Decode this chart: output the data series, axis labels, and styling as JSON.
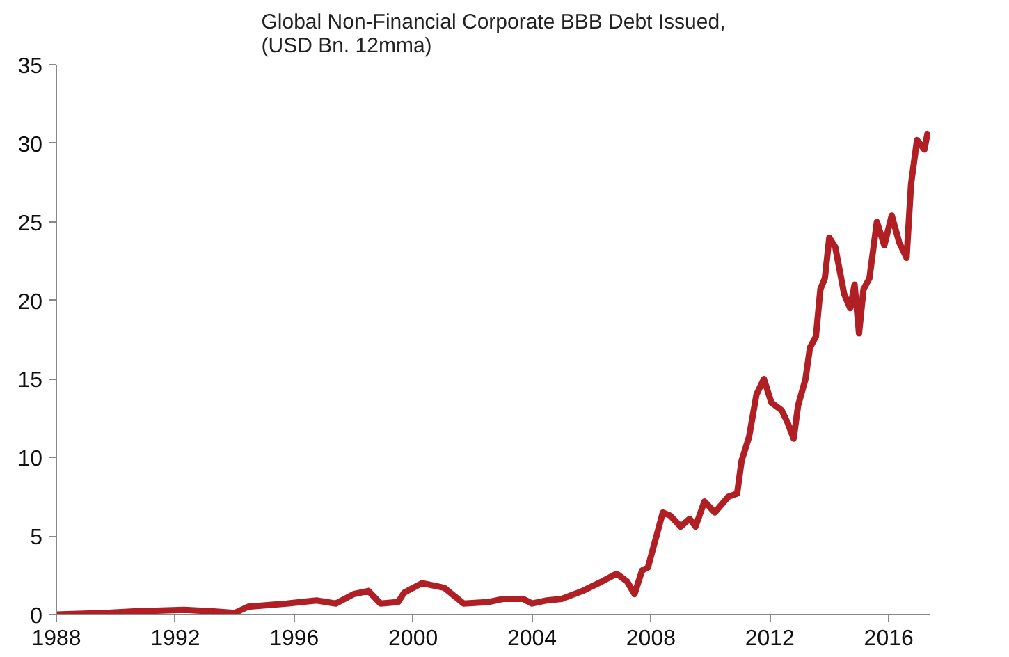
{
  "chart_data": {
    "type": "line",
    "title": "Global Non-Financial Corporate BBB Debt Issued,\n(USD Bn. 12mma)",
    "x": [
      1988.0,
      1989.65,
      1990.6,
      1992.3,
      1993.3,
      1994.0,
      1994.45,
      1995.75,
      1996.75,
      1997.4,
      1998.0,
      1998.5,
      1998.9,
      1999.5,
      1999.7,
      2000.3,
      2001.05,
      2001.7,
      2002.55,
      2003.05,
      2003.7,
      2004.0,
      2004.5,
      2005.0,
      2005.7,
      2006.35,
      2006.85,
      2007.2,
      2007.45,
      2007.7,
      2007.9,
      2008.4,
      2008.65,
      2009.0,
      2009.3,
      2009.5,
      2009.8,
      2010.15,
      2010.6,
      2010.9,
      2011.05,
      2011.3,
      2011.55,
      2011.8,
      2012.05,
      2012.4,
      2012.6,
      2012.8,
      2012.95,
      2013.2,
      2013.35,
      2013.55,
      2013.7,
      2013.85,
      2014.0,
      2014.2,
      2014.5,
      2014.7,
      2014.85,
      2015.0,
      2015.15,
      2015.35,
      2015.6,
      2015.85,
      2016.1,
      2016.35,
      2016.6,
      2016.75,
      2016.95,
      2017.2,
      2017.3
    ],
    "series": [
      {
        "color": "#b01f24",
        "values": [
          0.0,
          0.1,
          0.2,
          0.3,
          0.2,
          0.1,
          0.5,
          0.7,
          0.9,
          0.7,
          1.3,
          1.5,
          0.7,
          0.8,
          1.4,
          2.0,
          1.7,
          0.7,
          0.8,
          1.0,
          1.0,
          0.7,
          0.9,
          1.0,
          1.5,
          2.1,
          2.6,
          2.1,
          1.3,
          2.8,
          3.0,
          6.5,
          6.3,
          5.6,
          6.1,
          5.6,
          7.2,
          6.5,
          7.5,
          7.7,
          9.8,
          11.3,
          14.0,
          15.0,
          13.5,
          13.0,
          12.2,
          11.2,
          13.3,
          15.0,
          17.0,
          17.7,
          20.7,
          21.4,
          24.0,
          23.4,
          20.4,
          19.5,
          21.0,
          17.9,
          20.7,
          21.4,
          25.0,
          23.5,
          25.4,
          23.7,
          22.7,
          27.4,
          30.2,
          29.6,
          30.6
        ]
      }
    ],
    "xlim": [
      1988,
      2017.4
    ],
    "xticks": [
      1988,
      1992,
      1996,
      2000,
      2004,
      2008,
      2012,
      2016
    ],
    "ylim": [
      0,
      35
    ],
    "yticks": [
      0,
      5,
      10,
      15,
      20,
      25,
      30,
      35
    ],
    "grid": false,
    "line_style": "solid"
  }
}
